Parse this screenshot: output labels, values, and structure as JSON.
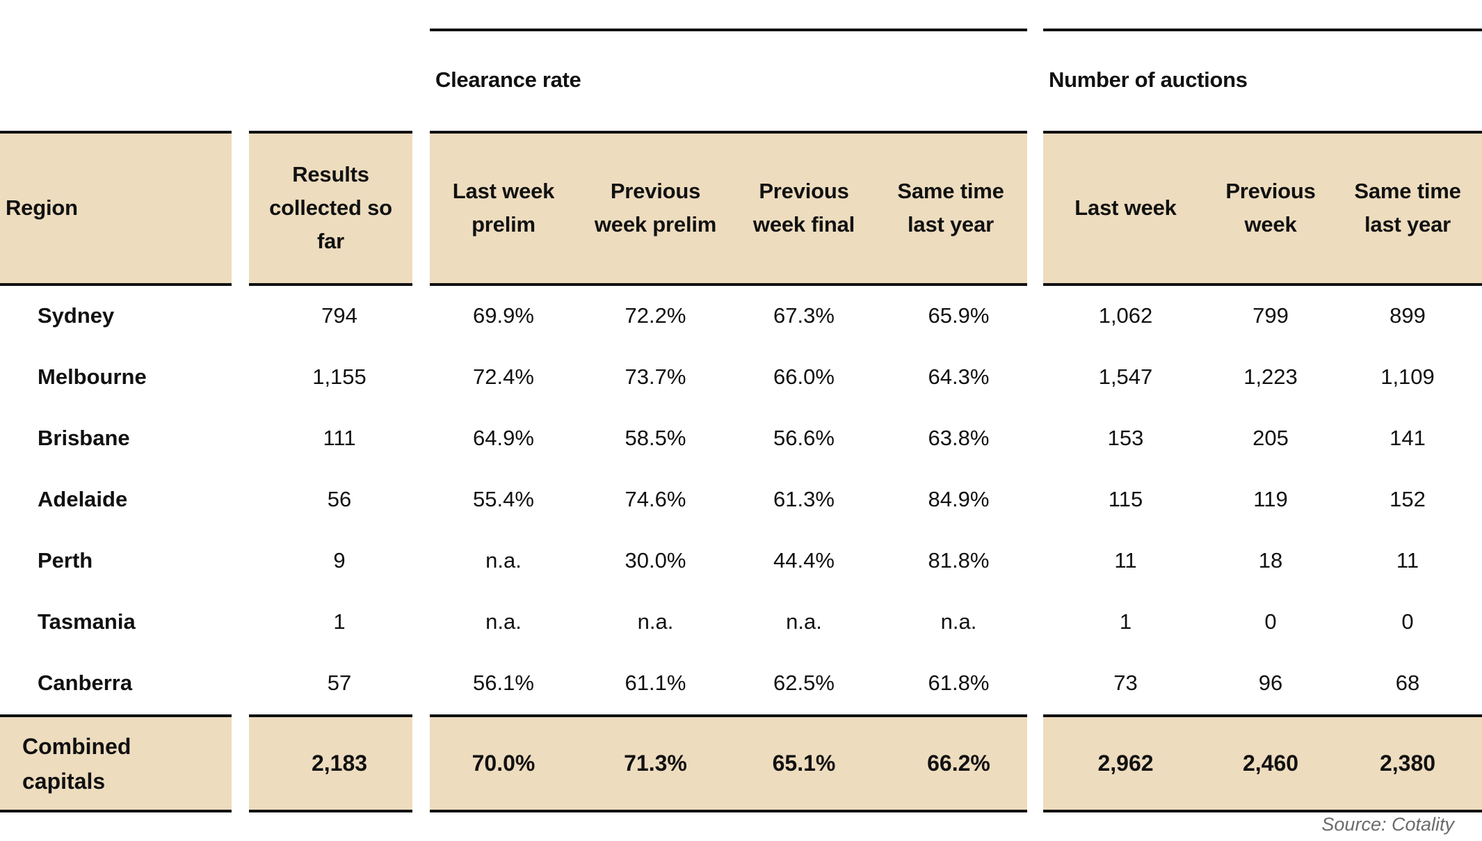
{
  "chart_data": {
    "type": "table",
    "column_groups": [
      {
        "label": "Clearance rate",
        "span": [
          2,
          5
        ]
      },
      {
        "label": "Number of auctions",
        "span": [
          6,
          8
        ]
      }
    ],
    "columns": [
      "Region",
      "Results\ncollected so\nfar",
      "Last week\nprelim",
      "Previous\nweek prelim",
      "Previous\nweek final",
      "Same time\nlast year",
      "Last week",
      "Previous\nweek",
      "Same time\nlast year"
    ],
    "rows": [
      [
        "Sydney",
        "794",
        "69.9%",
        "72.2%",
        "67.3%",
        "65.9%",
        "1,062",
        "799",
        "899"
      ],
      [
        "Melbourne",
        "1,155",
        "72.4%",
        "73.7%",
        "66.0%",
        "64.3%",
        "1,547",
        "1,223",
        "1,109"
      ],
      [
        "Brisbane",
        "111",
        "64.9%",
        "58.5%",
        "56.6%",
        "63.8%",
        "153",
        "205",
        "141"
      ],
      [
        "Adelaide",
        "56",
        "55.4%",
        "74.6%",
        "61.3%",
        "84.9%",
        "115",
        "119",
        "152"
      ],
      [
        "Perth",
        "9",
        "n.a.",
        "30.0%",
        "44.4%",
        "81.8%",
        "11",
        "18",
        "11"
      ],
      [
        "Tasmania",
        "1",
        "n.a.",
        "n.a.",
        "n.a.",
        "n.a.",
        "1",
        "0",
        "0"
      ],
      [
        "Canberra",
        "57",
        "56.1%",
        "61.1%",
        "62.5%",
        "61.8%",
        "73",
        "96",
        "68"
      ]
    ],
    "total_row": [
      "Combined\ncapitals",
      "2,183",
      "70.0%",
      "71.3%",
      "65.1%",
      "66.2%",
      "2,962",
      "2,460",
      "2,380"
    ],
    "source": "Source: Cotality"
  },
  "colors": {
    "header_band": "#eddcbe",
    "rule": "#111111",
    "text": "#111111",
    "source_text": "#6b6b6b"
  }
}
